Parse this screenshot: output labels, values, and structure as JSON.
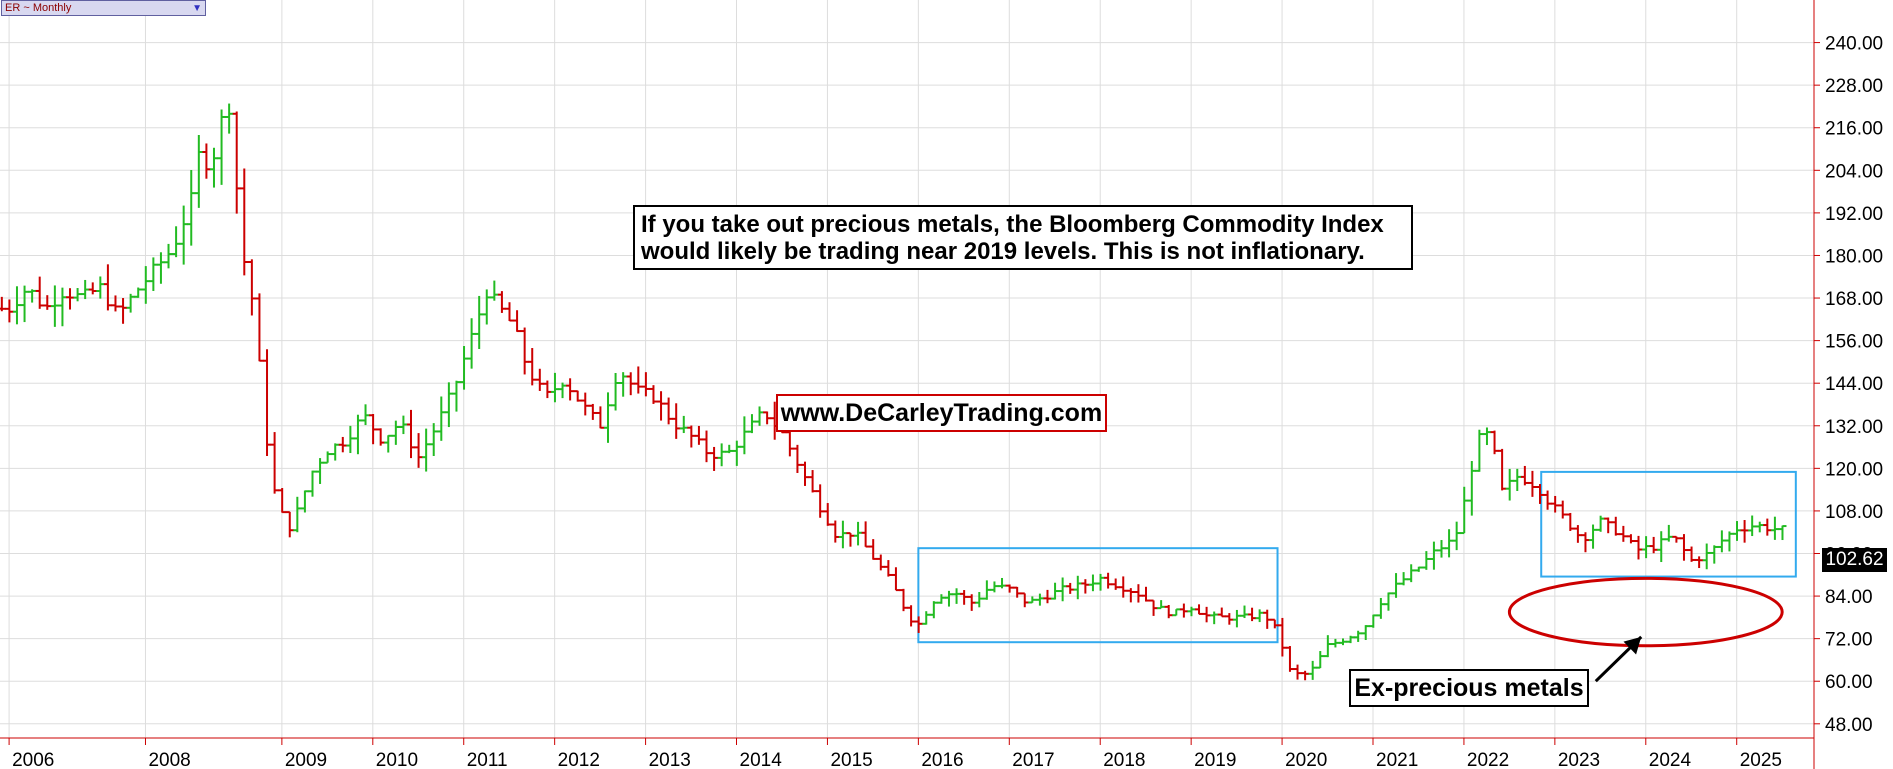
{
  "symbol_box": {
    "label": "ER ~ Monthly",
    "dropdown_icon": "triangle-down-icon"
  },
  "annotations": {
    "main_note": [
      "If you take out precious metals, the Bloomberg Commodity Index",
      "would likely be trading near 2019 levels. This is not inflationary."
    ],
    "website": "www.DeCarleyTrading.com",
    "ex_label": "Ex-precious metals"
  },
  "last_price": "102.62",
  "colors": {
    "up_bar": "#22bb22",
    "down_bar": "#cc0000",
    "highlight_box": "#33aaee",
    "ellipse": "#cc0000",
    "grid": "#dddddd",
    "axis": "#cc0000"
  },
  "chart_data": {
    "type": "bar",
    "bar_style": "OHLC monthly bars",
    "interval": "Monthly",
    "ylim": [
      44,
      252
    ],
    "xlim": [
      2005.9,
      2025.85
    ],
    "y_ticks": [
      "48.00",
      "60.00",
      "72.00",
      "84.00",
      "96.00",
      "108.00",
      "120.00",
      "132.00",
      "144.00",
      "156.00",
      "168.00",
      "180.00",
      "192.00",
      "204.00",
      "216.00",
      "228.00",
      "240.00"
    ],
    "x_ticks": [
      "2006",
      "2008",
      "2009",
      "2010",
      "2011",
      "2012",
      "2013",
      "2014",
      "2015",
      "2016",
      "2017",
      "2018",
      "2019",
      "2020",
      "2021",
      "2022",
      "2023",
      "2024",
      "2025"
    ],
    "x_tick_years": [
      2006,
      2007.5,
      2009,
      2010,
      2011,
      2012,
      2013,
      2014,
      2015,
      2016,
      2017,
      2018,
      2019,
      2020,
      2021,
      2022,
      2023,
      2024,
      2025
    ],
    "closes": [
      [
        2006.0,
        165
      ],
      [
        2006.2,
        171
      ],
      [
        2006.4,
        165
      ],
      [
        2006.6,
        170
      ],
      [
        2006.8,
        168
      ],
      [
        2007.0,
        171
      ],
      [
        2007.2,
        163
      ],
      [
        2007.4,
        170
      ],
      [
        2007.6,
        176
      ],
      [
        2007.8,
        182
      ],
      [
        2008.0,
        195
      ],
      [
        2008.1,
        210
      ],
      [
        2008.2,
        205
      ],
      [
        2008.3,
        212
      ],
      [
        2008.4,
        228
      ],
      [
        2008.5,
        200
      ],
      [
        2008.6,
        175
      ],
      [
        2008.7,
        165
      ],
      [
        2008.8,
        135
      ],
      [
        2008.9,
        115
      ],
      [
        2009.0,
        107
      ],
      [
        2009.1,
        103
      ],
      [
        2009.2,
        110
      ],
      [
        2009.35,
        120
      ],
      [
        2009.5,
        125
      ],
      [
        2009.7,
        128
      ],
      [
        2009.9,
        135
      ],
      [
        2010.1,
        128
      ],
      [
        2010.3,
        133
      ],
      [
        2010.5,
        123
      ],
      [
        2010.7,
        132
      ],
      [
        2010.9,
        143
      ],
      [
        2011.1,
        158
      ],
      [
        2011.25,
        170
      ],
      [
        2011.4,
        165
      ],
      [
        2011.55,
        160
      ],
      [
        2011.7,
        148
      ],
      [
        2011.9,
        140
      ],
      [
        2012.1,
        145
      ],
      [
        2012.3,
        138
      ],
      [
        2012.5,
        132
      ],
      [
        2012.7,
        148
      ],
      [
        2012.9,
        142
      ],
      [
        2013.1,
        140
      ],
      [
        2013.3,
        133
      ],
      [
        2013.5,
        129
      ],
      [
        2013.7,
        124
      ],
      [
        2013.9,
        124
      ],
      [
        2014.1,
        130
      ],
      [
        2014.3,
        136
      ],
      [
        2014.5,
        130
      ],
      [
        2014.7,
        120
      ],
      [
        2014.9,
        110
      ],
      [
        2015.1,
        101
      ],
      [
        2015.3,
        102
      ],
      [
        2015.5,
        95
      ],
      [
        2015.7,
        88
      ],
      [
        2015.9,
        78
      ],
      [
        2016.0,
        76
      ],
      [
        2016.2,
        84
      ],
      [
        2016.4,
        85
      ],
      [
        2016.6,
        82
      ],
      [
        2016.8,
        87
      ],
      [
        2017.0,
        86
      ],
      [
        2017.2,
        82
      ],
      [
        2017.4,
        84
      ],
      [
        2017.6,
        86
      ],
      [
        2017.8,
        87
      ],
      [
        2018.0,
        89
      ],
      [
        2018.2,
        87
      ],
      [
        2018.4,
        85
      ],
      [
        2018.6,
        81
      ],
      [
        2018.8,
        79
      ],
      [
        2019.0,
        81
      ],
      [
        2019.2,
        78
      ],
      [
        2019.4,
        78
      ],
      [
        2019.6,
        78
      ],
      [
        2019.8,
        79
      ],
      [
        2019.95,
        74
      ],
      [
        2020.1,
        62
      ],
      [
        2020.3,
        62
      ],
      [
        2020.5,
        70
      ],
      [
        2020.7,
        72
      ],
      [
        2020.9,
        75
      ],
      [
        2021.1,
        83
      ],
      [
        2021.3,
        88
      ],
      [
        2021.5,
        92
      ],
      [
        2021.7,
        97
      ],
      [
        2021.9,
        100
      ],
      [
        2022.0,
        110
      ],
      [
        2022.15,
        128
      ],
      [
        2022.3,
        130
      ],
      [
        2022.4,
        113
      ],
      [
        2022.6,
        118
      ],
      [
        2022.8,
        115
      ],
      [
        2022.95,
        110
      ],
      [
        2023.1,
        106
      ],
      [
        2023.3,
        100
      ],
      [
        2023.5,
        105
      ],
      [
        2023.7,
        102
      ],
      [
        2023.9,
        97
      ],
      [
        2024.1,
        98
      ],
      [
        2024.3,
        101
      ],
      [
        2024.5,
        94
      ],
      [
        2024.7,
        96
      ],
      [
        2024.85,
        100
      ],
      [
        2025.0,
        103
      ],
      [
        2025.2,
        104
      ],
      [
        2025.4,
        103
      ],
      [
        2025.55,
        102.62
      ]
    ],
    "highlight_boxes": [
      {
        "x": [
          2016.0,
          2019.95
        ],
        "y": [
          71,
          97.5
        ]
      },
      {
        "x": [
          2022.85,
          2025.65
        ],
        "y": [
          89.5,
          119
        ]
      }
    ],
    "ellipse": {
      "center": [
        2024.0,
        79.5
      ],
      "radius": [
        1.5,
        9.5
      ]
    },
    "arrow": {
      "from": [
        2023.45,
        60
      ],
      "to": [
        2023.95,
        72.5
      ]
    }
  }
}
